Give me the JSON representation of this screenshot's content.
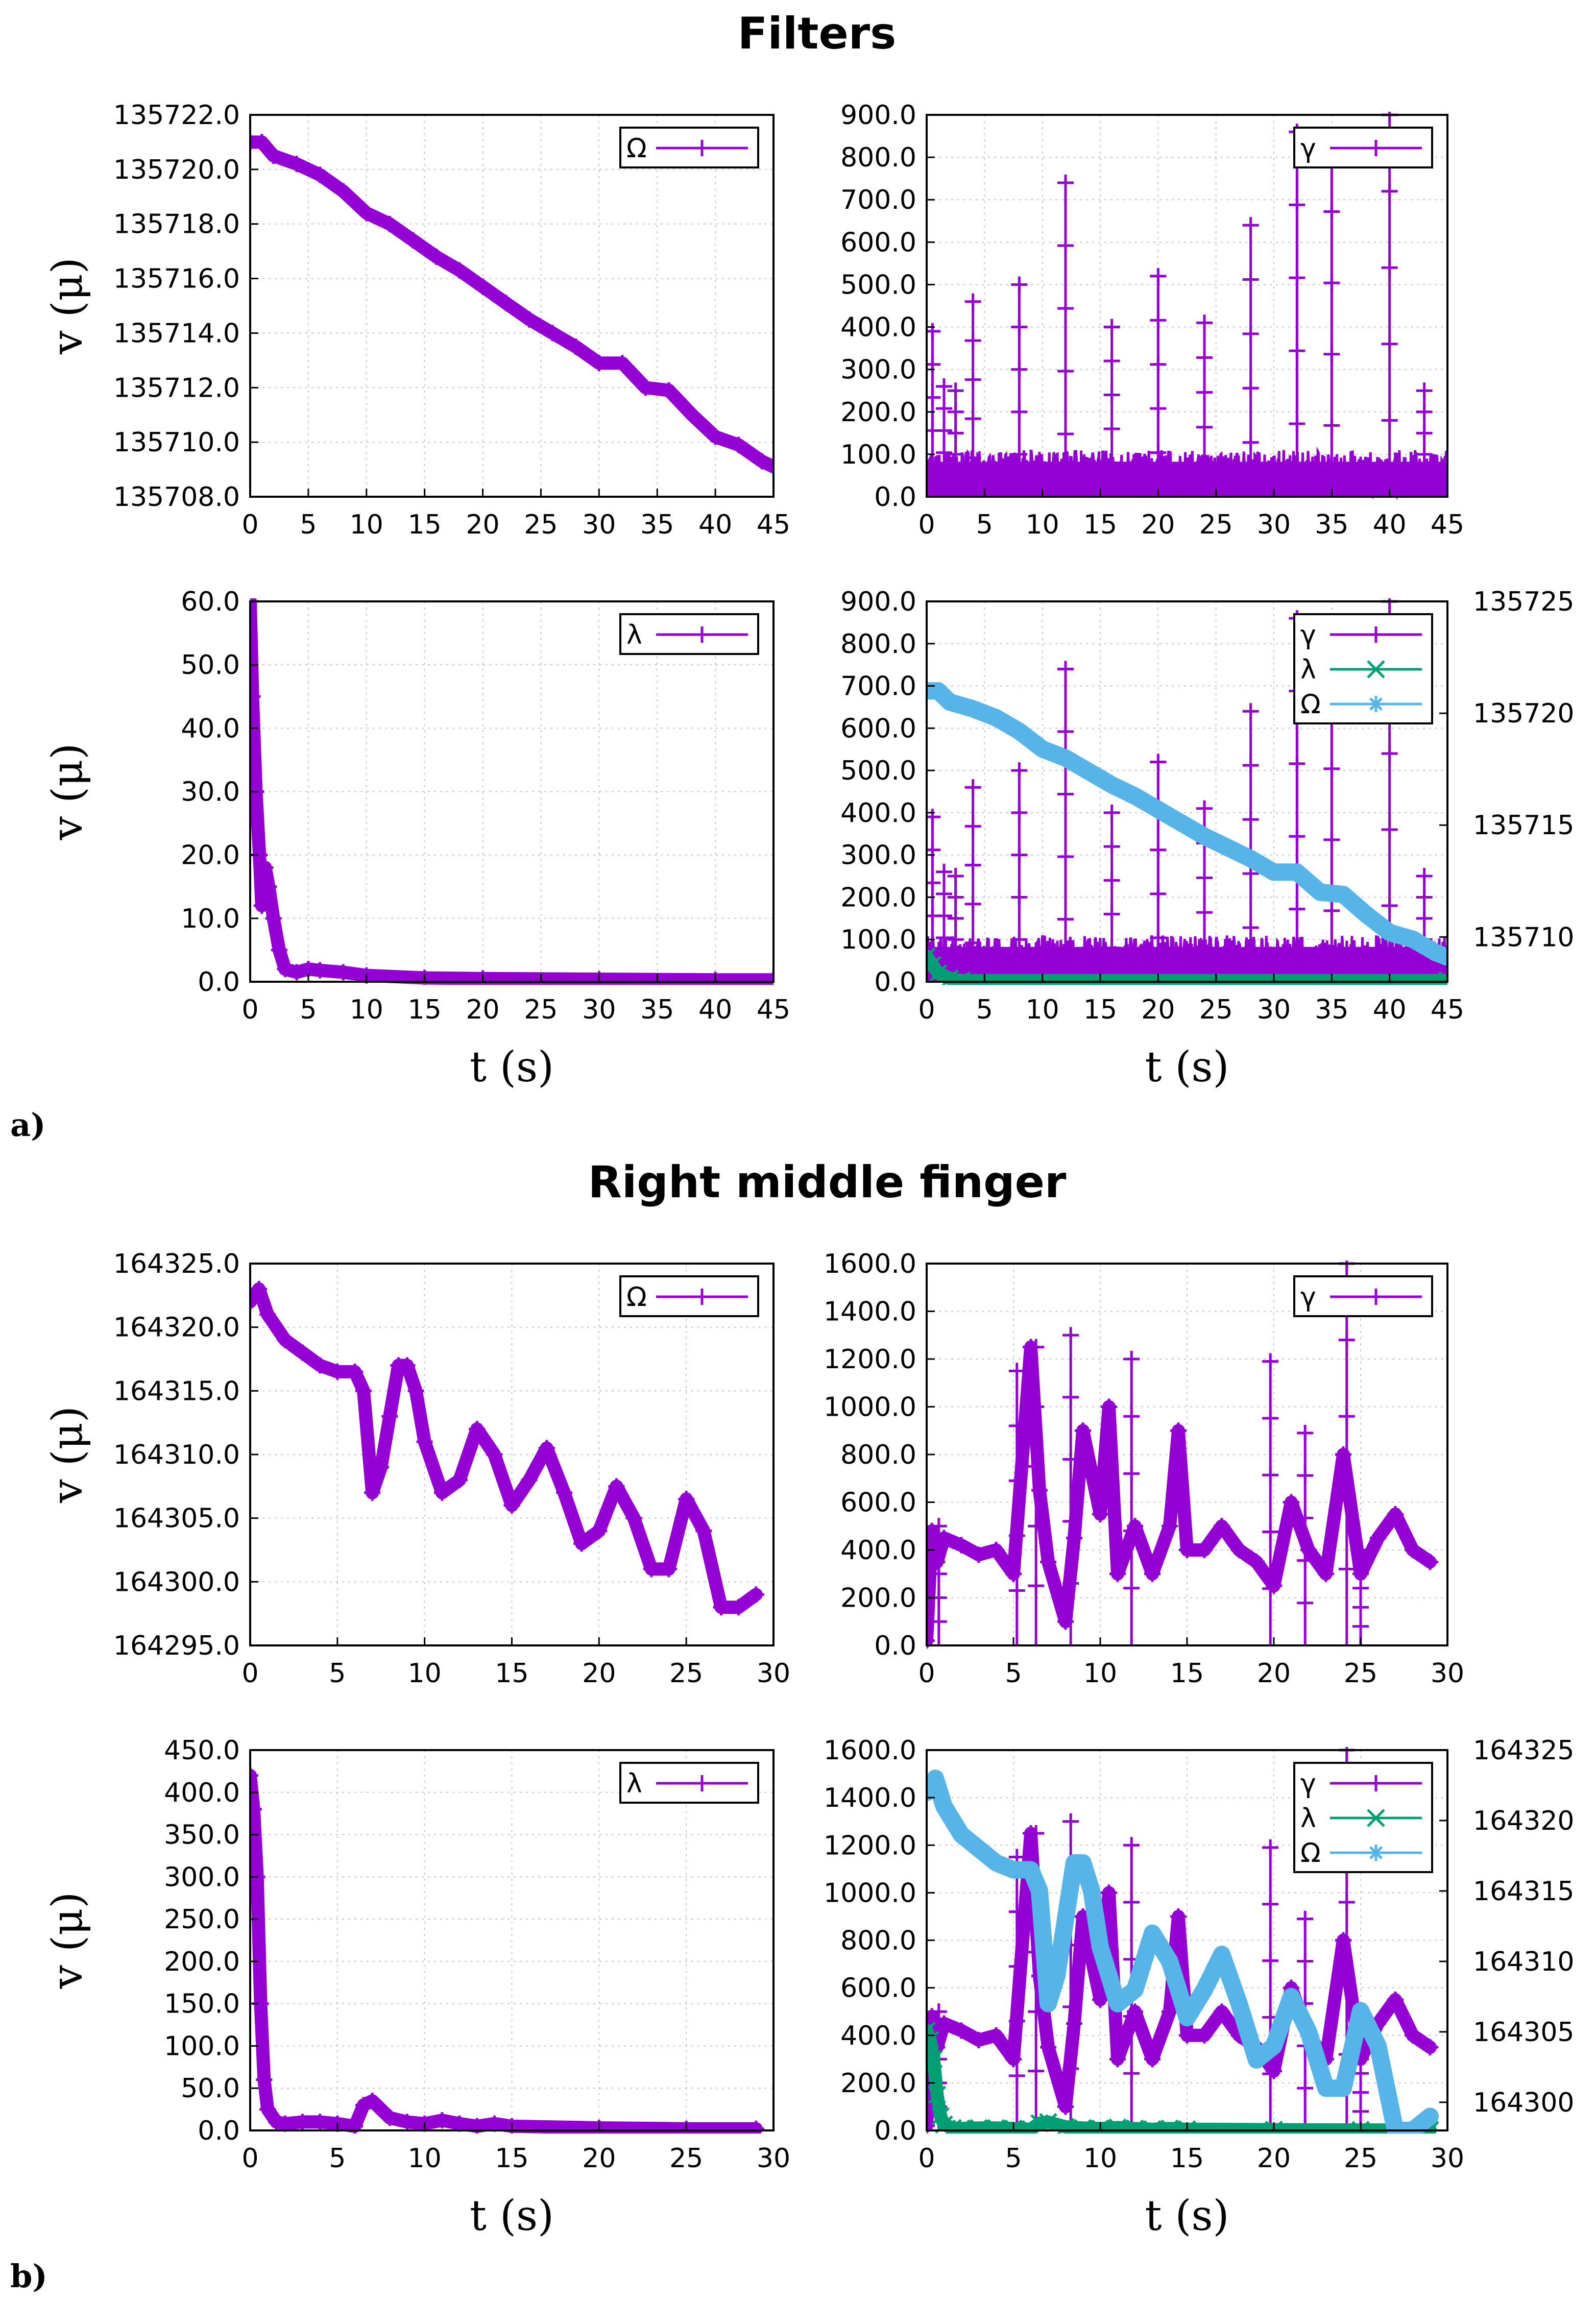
{
  "colors": {
    "gamma": "#9400d3",
    "lambda": "#009e73",
    "omega": "#56b4e9",
    "grid": "#c8c8c8",
    "frame": "#000000"
  },
  "sections": [
    {
      "title": "Filters",
      "part_label": "a)"
    },
    {
      "title": "Right middle finger",
      "part_label": "b)"
    }
  ],
  "chart_data": [
    {
      "type": "line",
      "section": 0,
      "panel": "top-left",
      "ylabel": "v (μ)",
      "xlabel": "",
      "xlim": [
        0,
        45
      ],
      "ylim": [
        135708,
        135722
      ],
      "x_ticks": [
        "0",
        "5",
        "10",
        "15",
        "20",
        "25",
        "30",
        "35",
        "40",
        "45"
      ],
      "y_ticks": [
        "135708.0",
        "135710.0",
        "135712.0",
        "135714.0",
        "135716.0",
        "135718.0",
        "135720.0",
        "135722.0"
      ],
      "legend_position": "top-right",
      "series": [
        {
          "name": "Ω",
          "color": "#9400d3",
          "style": "plus",
          "x": [
            0,
            1,
            2,
            4,
            6,
            8,
            10,
            12,
            14,
            16,
            18,
            20,
            22,
            24,
            26,
            28,
            30,
            32,
            34,
            36,
            38,
            40,
            42,
            44,
            45
          ],
          "y": [
            135721.0,
            135721.0,
            135720.5,
            135720.2,
            135719.8,
            135719.2,
            135718.4,
            135718.0,
            135717.4,
            135716.8,
            135716.3,
            135715.7,
            135715.1,
            135714.5,
            135714.0,
            135713.5,
            135712.9,
            135712.9,
            135712.0,
            135711.9,
            135711.0,
            135710.2,
            135709.9,
            135709.3,
            135709.1
          ]
        }
      ]
    },
    {
      "type": "line",
      "section": 0,
      "panel": "top-right",
      "ylabel": "",
      "xlabel": "",
      "xlim": [
        0,
        45
      ],
      "ylim": [
        0,
        900
      ],
      "x_ticks": [
        "0",
        "5",
        "10",
        "15",
        "20",
        "25",
        "30",
        "35",
        "40",
        "45"
      ],
      "y_ticks": [
        "0.0",
        "100.0",
        "200.0",
        "300.0",
        "400.0",
        "500.0",
        "600.0",
        "700.0",
        "800.0",
        "900.0"
      ],
      "legend_position": "top-right",
      "series": [
        {
          "name": "γ",
          "color": "#9400d3",
          "style": "plus",
          "baseline_range": [
            0,
            110
          ],
          "spikes": [
            [
              0.5,
              390
            ],
            [
              1.5,
              260
            ],
            [
              2.5,
              250
            ],
            [
              4,
              460
            ],
            [
              8,
              500
            ],
            [
              12,
              740
            ],
            [
              16,
              400
            ],
            [
              20,
              520
            ],
            [
              24,
              410
            ],
            [
              28,
              640
            ],
            [
              32,
              860
            ],
            [
              35,
              840
            ],
            [
              40,
              900
            ],
            [
              43,
              250
            ]
          ]
        }
      ]
    },
    {
      "type": "line",
      "section": 0,
      "panel": "bottom-left",
      "ylabel": "v (μ)",
      "xlabel": "t (s)",
      "xlim": [
        0,
        45
      ],
      "ylim": [
        0,
        60
      ],
      "x_ticks": [
        "0",
        "5",
        "10",
        "15",
        "20",
        "25",
        "30",
        "35",
        "40",
        "45"
      ],
      "y_ticks": [
        "0.0",
        "10.0",
        "20.0",
        "30.0",
        "40.0",
        "50.0",
        "60.0"
      ],
      "legend_position": "top-right",
      "series": [
        {
          "name": "λ",
          "color": "#9400d3",
          "style": "plus",
          "x": [
            0,
            0.2,
            0.5,
            0.8,
            1,
            1.3,
            1.6,
            2,
            2.5,
            3,
            4,
            5,
            6,
            8,
            10,
            15,
            20,
            30,
            40,
            45
          ],
          "y": [
            60,
            45,
            30,
            20,
            12,
            18,
            15,
            10,
            5,
            2,
            1.5,
            2,
            1.8,
            1.5,
            1,
            0.6,
            0.5,
            0.4,
            0.3,
            0.3
          ]
        }
      ]
    },
    {
      "type": "line",
      "section": 0,
      "panel": "bottom-right",
      "ylabel": "",
      "xlabel": "t (s)",
      "xlim": [
        0,
        45
      ],
      "ylim": [
        0,
        900
      ],
      "ylim_right": [
        135708,
        135725
      ],
      "x_ticks": [
        "0",
        "5",
        "10",
        "15",
        "20",
        "25",
        "30",
        "35",
        "40",
        "45"
      ],
      "y_ticks": [
        "0.0",
        "100.0",
        "200.0",
        "300.0",
        "400.0",
        "500.0",
        "600.0",
        "700.0",
        "800.0",
        "900.0"
      ],
      "y2_ticks": [
        "135710",
        "135715",
        "135720",
        "135725"
      ],
      "legend_position": "top-right",
      "series": [
        {
          "name": "γ",
          "color": "#9400d3",
          "style": "plus",
          "baseline_range": [
            0,
            110
          ],
          "spikes": [
            [
              0.5,
              390
            ],
            [
              1.5,
              260
            ],
            [
              2.5,
              250
            ],
            [
              4,
              460
            ],
            [
              8,
              500
            ],
            [
              12,
              740
            ],
            [
              16,
              400
            ],
            [
              20,
              520
            ],
            [
              24,
              410
            ],
            [
              28,
              640
            ],
            [
              32,
              860
            ],
            [
              35,
              840
            ],
            [
              40,
              900
            ],
            [
              43,
              250
            ]
          ]
        },
        {
          "name": "λ",
          "color": "#009e73",
          "style": "cross",
          "x": [
            0,
            0.5,
            1,
            2,
            3,
            45
          ],
          "y": [
            60,
            40,
            20,
            8,
            3,
            3
          ]
        },
        {
          "name": "Ω",
          "color": "#56b4e9",
          "style": "star",
          "axis": "right",
          "x": [
            0,
            1,
            2,
            4,
            6,
            8,
            10,
            12,
            14,
            16,
            18,
            20,
            22,
            24,
            26,
            28,
            30,
            32,
            34,
            36,
            38,
            40,
            42,
            44,
            45
          ],
          "y": [
            135721.0,
            135721.0,
            135720.5,
            135720.2,
            135719.8,
            135719.2,
            135718.4,
            135718.0,
            135717.4,
            135716.8,
            135716.3,
            135715.7,
            135715.1,
            135714.5,
            135714.0,
            135713.5,
            135712.9,
            135712.9,
            135712.0,
            135711.9,
            135711.0,
            135710.2,
            135709.9,
            135709.3,
            135709.1
          ]
        }
      ]
    },
    {
      "type": "line",
      "section": 1,
      "panel": "top-left",
      "ylabel": "v (μ)",
      "xlabel": "",
      "xlim": [
        0,
        30
      ],
      "ylim": [
        164295,
        164325
      ],
      "x_ticks": [
        "0",
        "5",
        "10",
        "15",
        "20",
        "25",
        "30"
      ],
      "y_ticks": [
        "164295.0",
        "164300.0",
        "164305.0",
        "164310.0",
        "164315.0",
        "164320.0",
        "164325.0"
      ],
      "legend_position": "top-right",
      "series": [
        {
          "name": "Ω",
          "color": "#9400d3",
          "style": "plus",
          "x": [
            0,
            0.5,
            1,
            2,
            3,
            4,
            5,
            6,
            6.5,
            7,
            7.5,
            8,
            8.5,
            9,
            9.5,
            10,
            11,
            12,
            13,
            14,
            15,
            16,
            17,
            18,
            19,
            20,
            21,
            22,
            23,
            24,
            25,
            26,
            27,
            28,
            29
          ],
          "y": [
            164322,
            164323,
            164321,
            164319,
            164318,
            164317,
            164316.5,
            164316.5,
            164315,
            164307,
            164309,
            164313,
            164317,
            164317,
            164315,
            164311,
            164307,
            164308,
            164312,
            164310,
            164306,
            164308,
            164310.5,
            164307,
            164303,
            164304,
            164307.5,
            164305,
            164301,
            164301,
            164306.5,
            164304,
            164298,
            164298,
            164299
          ]
        }
      ]
    },
    {
      "type": "line",
      "section": 1,
      "panel": "top-right",
      "ylabel": "",
      "xlabel": "",
      "xlim": [
        0,
        30
      ],
      "ylim": [
        0,
        1600
      ],
      "x_ticks": [
        "0",
        "5",
        "10",
        "15",
        "20",
        "25",
        "30"
      ],
      "y_ticks": [
        "0.0",
        "200.0",
        "400.0",
        "600.0",
        "800.0",
        "1000.0",
        "1200.0",
        "1400.0",
        "1600.0"
      ],
      "legend_position": "top-right",
      "series": [
        {
          "name": "γ",
          "color": "#9400d3",
          "style": "plus",
          "x": [
            0,
            0.3,
            0.6,
            1,
            2,
            3,
            4,
            5,
            6,
            6.5,
            7,
            8,
            8.5,
            9,
            10,
            10.5,
            11,
            12,
            13,
            14,
            14.5,
            15,
            16,
            17,
            18,
            19,
            20,
            21,
            22,
            23,
            24,
            25,
            26,
            27,
            28,
            29
          ],
          "y": [
            20,
            480,
            350,
            450,
            420,
            380,
            400,
            300,
            1250,
            650,
            350,
            100,
            450,
            900,
            550,
            1000,
            300,
            500,
            300,
            500,
            900,
            400,
            400,
            500,
            400,
            350,
            250,
            600,
            400,
            300,
            800,
            300,
            450,
            550,
            400,
            350
          ],
          "spikes": [
            [
              0.7,
              500
            ],
            [
              5.2,
              1150
            ],
            [
              6.3,
              1250
            ],
            [
              8.3,
              1300
            ],
            [
              11.8,
              1200
            ],
            [
              19.8,
              1190
            ],
            [
              21.8,
              890
            ],
            [
              24.2,
              1600
            ],
            [
              25,
              400
            ]
          ]
        }
      ]
    },
    {
      "type": "line",
      "section": 1,
      "panel": "bottom-left",
      "ylabel": "v (μ)",
      "xlabel": "t (s)",
      "xlim": [
        0,
        30
      ],
      "ylim": [
        0,
        450
      ],
      "x_ticks": [
        "0",
        "5",
        "10",
        "15",
        "20",
        "25",
        "30"
      ],
      "y_ticks": [
        "0.0",
        "50.0",
        "100.0",
        "150.0",
        "200.0",
        "250.0",
        "300.0",
        "350.0",
        "400.0",
        "450.0"
      ],
      "legend_position": "top-right",
      "series": [
        {
          "name": "λ",
          "color": "#9400d3",
          "style": "plus",
          "x": [
            0,
            0.2,
            0.4,
            0.6,
            0.8,
            1,
            1.5,
            2,
            3,
            4,
            5,
            6,
            6.5,
            7,
            8,
            9,
            10,
            11,
            12,
            13,
            14,
            15,
            20,
            25,
            29
          ],
          "y": [
            420,
            380,
            300,
            150,
            60,
            25,
            10,
            8,
            10,
            10,
            8,
            5,
            30,
            35,
            15,
            10,
            8,
            12,
            8,
            5,
            8,
            5,
            3,
            2,
            2
          ]
        }
      ]
    },
    {
      "type": "line",
      "section": 1,
      "panel": "bottom-right",
      "ylabel": "",
      "xlabel": "t (s)",
      "xlim": [
        0,
        30
      ],
      "ylim": [
        0,
        1600
      ],
      "ylim_right": [
        164298,
        164325
      ],
      "x_ticks": [
        "0",
        "5",
        "10",
        "15",
        "20",
        "25",
        "30"
      ],
      "y_ticks": [
        "0.0",
        "200.0",
        "400.0",
        "600.0",
        "800.0",
        "1000.0",
        "1200.0",
        "1400.0",
        "1600.0"
      ],
      "y2_ticks": [
        "164300",
        "164305",
        "164310",
        "164315",
        "164320",
        "164325"
      ],
      "legend_position": "top-right",
      "series": [
        {
          "name": "γ",
          "color": "#9400d3",
          "style": "plus",
          "x": [
            0,
            0.3,
            0.6,
            1,
            2,
            3,
            4,
            5,
            6,
            6.5,
            7,
            8,
            8.5,
            9,
            10,
            10.5,
            11,
            12,
            13,
            14,
            14.5,
            15,
            16,
            17,
            18,
            19,
            20,
            21,
            22,
            23,
            24,
            25,
            26,
            27,
            28,
            29
          ],
          "y": [
            20,
            480,
            350,
            450,
            420,
            380,
            400,
            300,
            1250,
            650,
            350,
            100,
            450,
            900,
            550,
            1000,
            300,
            500,
            300,
            500,
            900,
            400,
            400,
            500,
            400,
            350,
            250,
            600,
            400,
            300,
            800,
            300,
            450,
            550,
            400,
            350
          ],
          "spikes": [
            [
              0.7,
              500
            ],
            [
              5.2,
              1150
            ],
            [
              6.3,
              1250
            ],
            [
              8.3,
              1300
            ],
            [
              11.8,
              1200
            ],
            [
              19.8,
              1190
            ],
            [
              21.8,
              890
            ],
            [
              24.2,
              1600
            ],
            [
              25,
              400
            ]
          ]
        },
        {
          "name": "λ",
          "color": "#009e73",
          "style": "cross",
          "x": [
            0,
            0.2,
            0.4,
            0.6,
            0.8,
            1,
            1.5,
            2,
            3,
            4,
            5,
            6,
            6.5,
            7,
            8,
            9,
            10,
            11,
            12,
            13,
            14,
            15,
            20,
            25,
            29
          ],
          "y": [
            420,
            380,
            300,
            150,
            60,
            25,
            10,
            8,
            10,
            10,
            8,
            5,
            30,
            35,
            15,
            10,
            8,
            12,
            8,
            5,
            8,
            5,
            3,
            2,
            2
          ]
        },
        {
          "name": "Ω",
          "color": "#56b4e9",
          "style": "star",
          "axis": "right",
          "x": [
            0,
            0.5,
            1,
            2,
            3,
            4,
            5,
            6,
            6.5,
            7,
            7.5,
            8,
            8.5,
            9,
            9.5,
            10,
            11,
            12,
            13,
            14,
            15,
            16,
            17,
            18,
            19,
            20,
            21,
            22,
            23,
            24,
            25,
            26,
            27,
            28,
            29
          ],
          "y": [
            164322,
            164323,
            164321,
            164319,
            164318,
            164317,
            164316.5,
            164316.5,
            164315,
            164307,
            164309,
            164313,
            164317,
            164317,
            164315,
            164311,
            164307,
            164308,
            164312,
            164310,
            164306,
            164308,
            164310.5,
            164307,
            164303,
            164304,
            164307.5,
            164305,
            164301,
            164301,
            164306.5,
            164304,
            164298,
            164298,
            164299
          ]
        }
      ]
    }
  ]
}
